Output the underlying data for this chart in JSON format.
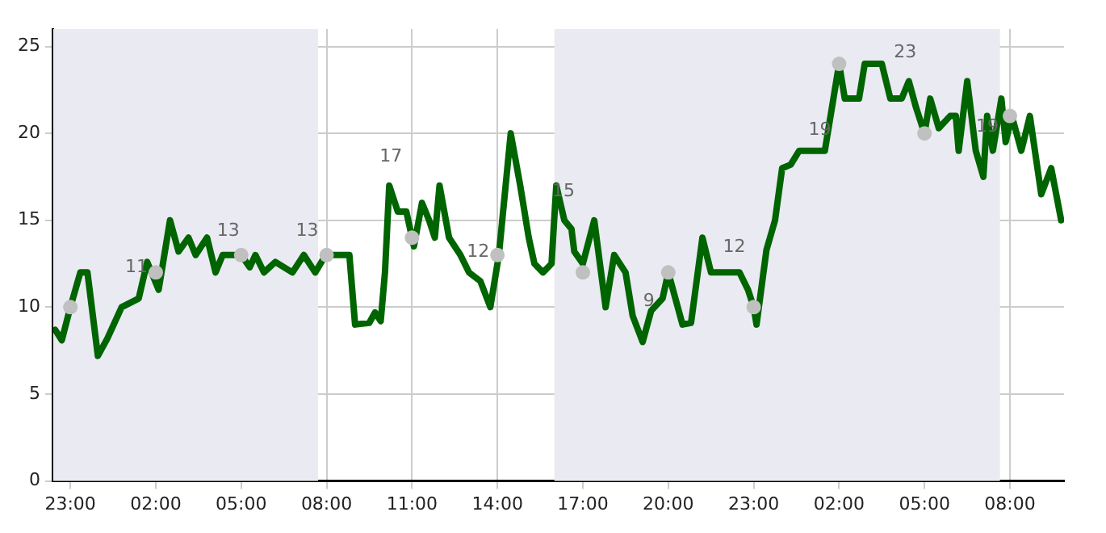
{
  "chart_data": {
    "type": "line",
    "xlim": [
      "--01-01T22:24",
      "--01-03T09:54"
    ],
    "ylim": [
      0,
      26
    ],
    "xticks": [
      {
        "value": "--01-01T23:00",
        "label": "23:00"
      },
      {
        "value": "--01-02T02:00",
        "label": "02:00"
      },
      {
        "value": "--01-02T05:00",
        "label": "05:00"
      },
      {
        "value": "--01-02T08:00",
        "label": "08:00"
      },
      {
        "value": "--01-02T11:00",
        "label": "11:00"
      },
      {
        "value": "--01-02T14:00",
        "label": "14:00"
      },
      {
        "value": "--01-02T17:00",
        "label": "17:00"
      },
      {
        "value": "--01-02T20:00",
        "label": "20:00"
      },
      {
        "value": "--01-02T23:00",
        "label": "23:00"
      },
      {
        "value": "--01-03T02:00",
        "label": "02:00"
      },
      {
        "value": "--01-03T05:00",
        "label": "05:00"
      },
      {
        "value": "--01-03T08:00",
        "label": "08:00"
      }
    ],
    "yticks": [
      0,
      5,
      10,
      15,
      20,
      25
    ],
    "grid": true,
    "legend": false,
    "bands": [
      {
        "axis": "x",
        "from": "--01-01T22:24",
        "to": "--01-02T07:42",
        "color": "#eaeaf2"
      },
      {
        "axis": "x",
        "from": "--01-02T16:00",
        "to": "--01-03T07:39",
        "color": "#eaeaf2"
      }
    ],
    "series": [
      {
        "type": "line",
        "color": "#006400",
        "marker": "none",
        "x": [
          "--01-01T22:28",
          "--01-01T22:42",
          "--01-01T23:00",
          "--01-01T23:21",
          "--01-01T23:36",
          "--01-01T23:58",
          "--01-02T00:18",
          "--01-02T00:48",
          "--01-02T01:24",
          "--01-02T01:42",
          "--01-02T02:06",
          "--01-02T02:30",
          "--01-02T02:48",
          "--01-02T03:09",
          "--01-02T03:24",
          "--01-02T03:48",
          "--01-02T04:06",
          "--01-02T04:21",
          "--01-02T05:00",
          "--01-02T05:18",
          "--01-02T05:30",
          "--01-02T05:48",
          "--01-02T06:12",
          "--01-02T06:48",
          "--01-02T07:12",
          "--01-02T07:36",
          "--01-02T07:58",
          "--01-02T08:12",
          "--01-02T08:48",
          "--01-02T09:00",
          "--01-02T09:30",
          "--01-02T09:42",
          "--01-02T09:54",
          "--01-02T10:03",
          "--01-02T10:12",
          "--01-02T10:30",
          "--01-02T10:48",
          "--01-02T11:04",
          "--01-02T11:21",
          "--01-02T11:36",
          "--01-02T11:48",
          "--01-02T11:58",
          "--01-02T12:18",
          "--01-02T12:42",
          "--01-02T13:00",
          "--01-02T13:24",
          "--01-02T13:45",
          "--01-02T14:03",
          "--01-02T14:28",
          "--01-02T14:48",
          "--01-02T15:06",
          "--01-02T15:18",
          "--01-02T15:36",
          "--01-02T15:54",
          "--01-02T16:04",
          "--01-02T16:21",
          "--01-02T16:36",
          "--01-02T16:42",
          "--01-02T17:00",
          "--01-02T17:24",
          "--01-02T17:48",
          "--01-02T18:06",
          "--01-02T18:30",
          "--01-02T18:45",
          "--01-02T19:06",
          "--01-02T19:24",
          "--01-02T19:48",
          "--01-02T20:00",
          "--01-02T20:15",
          "--01-02T20:30",
          "--01-02T20:48",
          "--01-02T21:12",
          "--01-02T21:30",
          "--01-02T22:30",
          "--01-02T22:48",
          "--01-02T23:00",
          "--01-02T23:06",
          "--01-02T23:27",
          "--01-02T23:45",
          "--01-03T00:00",
          "--01-03T00:18",
          "--01-03T00:36",
          "--01-03T01:30",
          "--01-03T01:48",
          "--01-03T02:00",
          "--01-03T02:12",
          "--01-03T02:42",
          "--01-03T02:54",
          "--01-03T03:30",
          "--01-03T03:48",
          "--01-03T04:12",
          "--01-03T04:27",
          "--01-03T04:42",
          "--01-03T05:00",
          "--01-03T05:12",
          "--01-03T05:30",
          "--01-03T05:54",
          "--01-03T06:06",
          "--01-03T06:12",
          "--01-03T06:30",
          "--01-03T06:48",
          "--01-03T07:04",
          "--01-03T07:12",
          "--01-03T07:24",
          "--01-03T07:42",
          "--01-03T07:51",
          "--01-03T08:04",
          "--01-03T08:24",
          "--01-03T08:42",
          "--01-03T09:06",
          "--01-03T09:27",
          "--01-03T09:48"
        ],
        "values": [
          8.7,
          8.1,
          10,
          12,
          12,
          7.2,
          8.2,
          10,
          10.5,
          12.6,
          11,
          15,
          13.2,
          14,
          13,
          14,
          12,
          13,
          13,
          12.3,
          13,
          12,
          12.6,
          12,
          13,
          12,
          13,
          13,
          13,
          9,
          9.1,
          9.7,
          9.2,
          12,
          17,
          15.5,
          15.5,
          13.5,
          16,
          15,
          14,
          17,
          14,
          13,
          12,
          11.5,
          10,
          13,
          20,
          17,
          14,
          12.5,
          12,
          12.5,
          17,
          15,
          14.5,
          13.2,
          12.5,
          15,
          10,
          13,
          12,
          9.5,
          8,
          9.8,
          10.5,
          12,
          10.5,
          9,
          9.1,
          14,
          12,
          12,
          11,
          10,
          9,
          13.3,
          15,
          18,
          18.2,
          19,
          19,
          22,
          24,
          22,
          22,
          24,
          24,
          22,
          22,
          23,
          21.5,
          20,
          22,
          20.3,
          21,
          21,
          19,
          23,
          19,
          17.5,
          21,
          19,
          22,
          19.5,
          21,
          19,
          21,
          16.5,
          18,
          15
        ]
      },
      {
        "type": "scatter",
        "color": "#c0c0c0",
        "marker": "circle",
        "x": [
          "--01-01T23:00",
          "--01-02T02:00",
          "--01-02T05:00",
          "--01-02T08:00",
          "--01-02T11:00",
          "--01-02T14:00",
          "--01-02T17:00",
          "--01-02T20:00",
          "--01-02T23:00",
          "--01-03T02:00",
          "--01-03T05:00",
          "--01-03T08:00"
        ],
        "values": [
          10,
          12,
          13,
          13,
          14,
          13,
          12,
          12,
          10,
          24,
          20,
          21
        ]
      }
    ],
    "annotations": [
      "11",
      "13",
      "13",
      "17",
      "12",
      "15",
      "9",
      "12",
      "19",
      "23",
      "19"
    ]
  }
}
